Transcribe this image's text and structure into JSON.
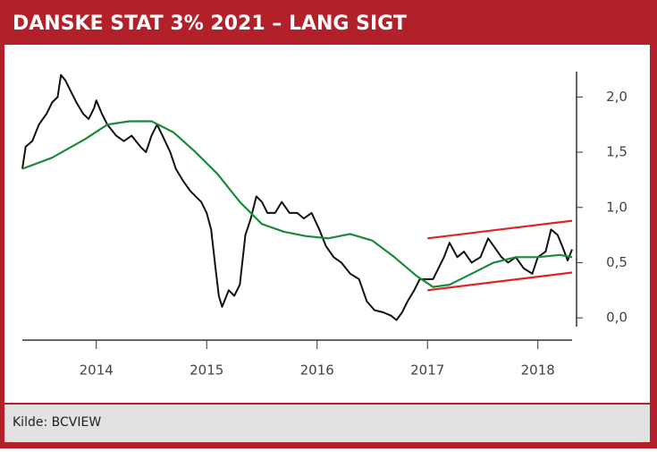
{
  "chart_data": {
    "type": "line",
    "title": "DANSKE STAT 3% 2021 – LANG SIGT",
    "source": "Kilde: BCVIEW",
    "xlim": [
      2013.33,
      2018.31
    ],
    "xticks": [
      2014,
      2015,
      2016,
      2017,
      2018
    ],
    "ylim": [
      -0.08,
      2.23
    ],
    "yticks": [
      {
        "value": 0,
        "label": "0,0"
      },
      {
        "value": 0.5,
        "label": "0,5"
      },
      {
        "value": 1,
        "label": "1,0"
      },
      {
        "value": 1.5,
        "label": "1,5"
      },
      {
        "value": 2,
        "label": "2,0"
      }
    ],
    "series": [
      {
        "color": "#111111",
        "x": [
          2013.33,
          2013.36,
          2013.42,
          2013.48,
          2013.55,
          2013.6,
          2013.65,
          2013.68,
          2013.72,
          2013.77,
          2013.82,
          2013.88,
          2013.93,
          2013.98,
          2014.0,
          2014.05,
          2014.1,
          2014.18,
          2014.25,
          2014.32,
          2014.4,
          2014.45,
          2014.5,
          2014.55,
          2014.6,
          2014.67,
          2014.72,
          2014.78,
          2014.85,
          2014.9,
          2014.95,
          2015.0,
          2015.04,
          2015.08,
          2015.11,
          2015.14,
          2015.2,
          2015.25,
          2015.3,
          2015.35,
          2015.4,
          2015.45,
          2015.5,
          2015.55,
          2015.62,
          2015.68,
          2015.75,
          2015.82,
          2015.88,
          2015.95,
          2016.02,
          2016.08,
          2016.15,
          2016.22,
          2016.3,
          2016.38,
          2016.45,
          2016.52,
          2016.6,
          2016.67,
          2016.72,
          2016.77,
          2016.82,
          2016.88,
          2016.93,
          2017.0,
          2017.05,
          2017.1,
          2017.15,
          2017.2,
          2017.27,
          2017.33,
          2017.4,
          2017.48,
          2017.55,
          2017.6,
          2017.67,
          2017.73,
          2017.8,
          2017.87,
          2017.95,
          2018.0,
          2018.07,
          2018.12,
          2018.18,
          2018.22,
          2018.27,
          2018.31
        ],
        "values": [
          1.35,
          1.55,
          1.6,
          1.75,
          1.85,
          1.95,
          2.0,
          2.2,
          2.15,
          2.05,
          1.95,
          1.85,
          1.8,
          1.9,
          1.97,
          1.85,
          1.75,
          1.65,
          1.6,
          1.65,
          1.55,
          1.5,
          1.65,
          1.75,
          1.65,
          1.5,
          1.35,
          1.25,
          1.15,
          1.1,
          1.05,
          0.95,
          0.8,
          0.45,
          0.2,
          0.1,
          0.25,
          0.2,
          0.3,
          0.75,
          0.9,
          1.1,
          1.05,
          0.95,
          0.95,
          1.05,
          0.95,
          0.95,
          0.9,
          0.95,
          0.8,
          0.65,
          0.55,
          0.5,
          0.4,
          0.35,
          0.15,
          0.07,
          0.05,
          0.02,
          -0.02,
          0.05,
          0.15,
          0.25,
          0.35,
          0.35,
          0.35,
          0.45,
          0.55,
          0.68,
          0.55,
          0.6,
          0.5,
          0.55,
          0.72,
          0.65,
          0.55,
          0.5,
          0.55,
          0.45,
          0.4,
          0.55,
          0.6,
          0.8,
          0.75,
          0.65,
          0.52,
          0.62
        ]
      },
      {
        "color": "#1a8a3a",
        "x": [
          2013.33,
          2013.6,
          2013.9,
          2014.1,
          2014.3,
          2014.5,
          2014.7,
          2014.9,
          2015.1,
          2015.3,
          2015.5,
          2015.7,
          2015.9,
          2016.1,
          2016.3,
          2016.5,
          2016.7,
          2016.9,
          2017.05,
          2017.2,
          2017.4,
          2017.6,
          2017.8,
          2018.0,
          2018.2,
          2018.31
        ],
        "values": [
          1.35,
          1.45,
          1.62,
          1.75,
          1.78,
          1.78,
          1.68,
          1.5,
          1.3,
          1.05,
          0.85,
          0.78,
          0.74,
          0.72,
          0.76,
          0.7,
          0.55,
          0.38,
          0.28,
          0.3,
          0.4,
          0.5,
          0.55,
          0.55,
          0.57,
          0.55
        ]
      },
      {
        "color": "#d9262b",
        "x": [
          2017.0,
          2018.31
        ],
        "values": [
          0.72,
          0.88
        ]
      },
      {
        "color": "#d9262b",
        "x": [
          2017.0,
          2018.31
        ],
        "values": [
          0.25,
          0.41
        ]
      }
    ]
  }
}
